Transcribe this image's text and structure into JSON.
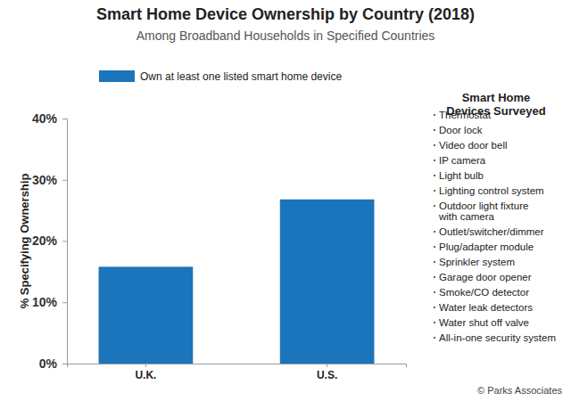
{
  "chart_data": {
    "type": "bar",
    "title": "Smart Home Device Ownership by Country (2018)",
    "subtitle": "Among Broadband Households in Specified Countries",
    "categories": [
      "U.K.",
      "U.S."
    ],
    "series": [
      {
        "name": "Own at least one listed smart home device",
        "color": "#1a75bc",
        "values": [
          15.8,
          26.8
        ]
      }
    ],
    "ylim": [
      0,
      40
    ],
    "yticks": [
      {
        "value": 0,
        "label": "0%"
      },
      {
        "value": 10,
        "label": "10%"
      },
      {
        "value": 20,
        "label": "20%"
      },
      {
        "value": 30,
        "label": "30%"
      },
      {
        "value": 40,
        "label": "40%"
      }
    ],
    "y_label": "% Specifying Ownership",
    "grid": false,
    "legend": "upper left",
    "annotations": [
      {
        "text": "Smart Home\nDevices Surveyed",
        "items": [
          "Thermostat",
          "Door lock",
          "Video door bell",
          "IP camera",
          "Light bulb",
          "Lighting control system",
          "Outdoor light fixture\nwith camera",
          "Outlet/switcher/dimmer",
          "Plug/adapter module",
          "Sprinkler system",
          "Garage door opener",
          "Smoke/CO detector",
          "Water leak detectors",
          "Water shut off valve",
          "All-in-one security system"
        ]
      },
      {
        "text": "© Parks Associates"
      }
    ]
  }
}
